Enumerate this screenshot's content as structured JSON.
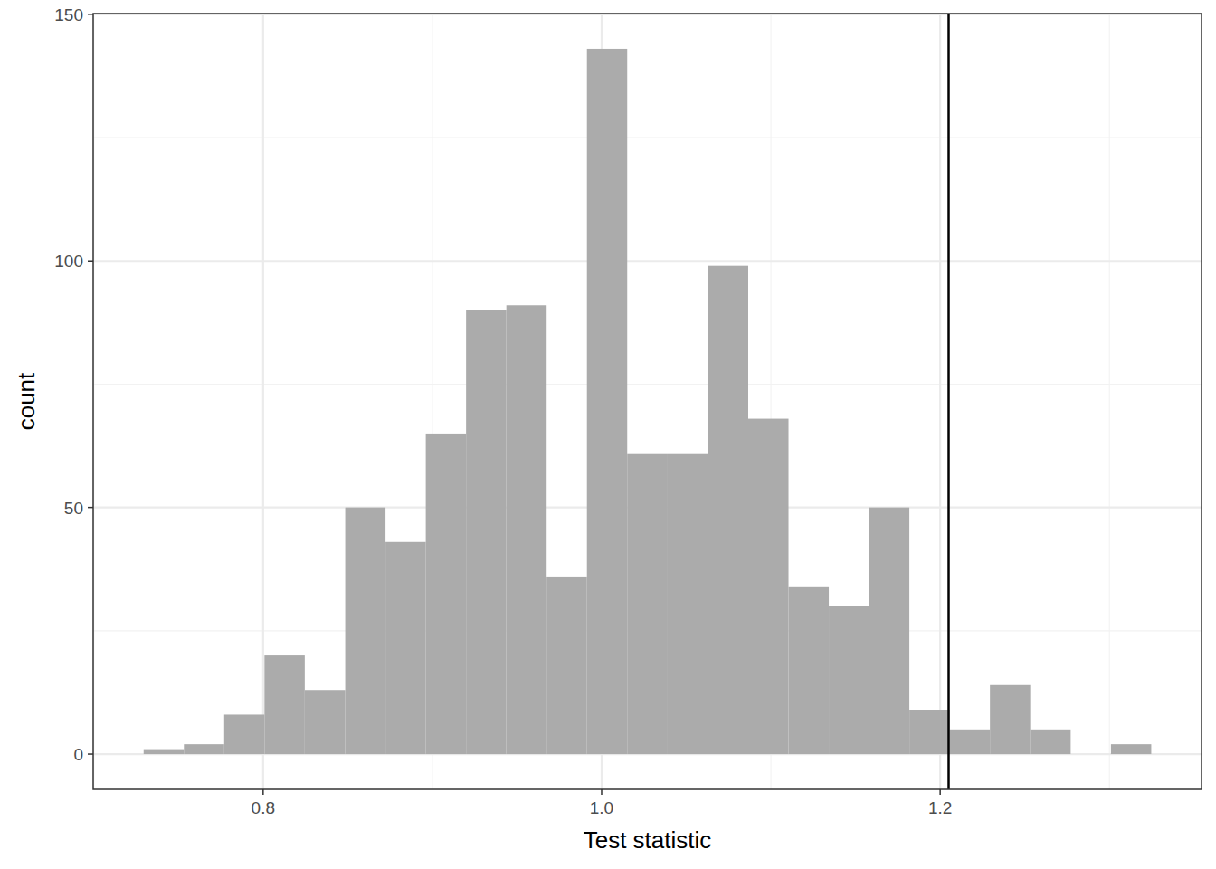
{
  "chart_data": {
    "type": "histogram",
    "x_label": "Test statistic",
    "y_label": "count",
    "bins": [
      0.7294,
      0.7532,
      0.777,
      0.8008,
      0.8246,
      0.8485,
      0.8723,
      0.8961,
      0.9199,
      0.9437,
      0.9675,
      0.9913,
      1.0151,
      1.039,
      1.0628,
      1.0866,
      1.1104,
      1.1342,
      1.158,
      1.1818,
      1.2056,
      1.2294,
      1.2532,
      1.2771,
      1.3009,
      1.3247
    ],
    "values": [
      1,
      2,
      8,
      20,
      13,
      50,
      43,
      65,
      90,
      91,
      36,
      143,
      61,
      61,
      99,
      68,
      34,
      30,
      50,
      9,
      5,
      14,
      5,
      0,
      2
    ],
    "color": "#ababab",
    "vline": 1.205,
    "xlim": [
      0.6996,
      1.3544
    ],
    "ylim": [
      -7.15,
      150.15
    ],
    "xticks": [
      0.8,
      {
        "value": 1,
        "label": "1.0"
      },
      1.2
    ],
    "yticks": [
      0,
      50,
      100,
      150
    ],
    "grid": true
  }
}
